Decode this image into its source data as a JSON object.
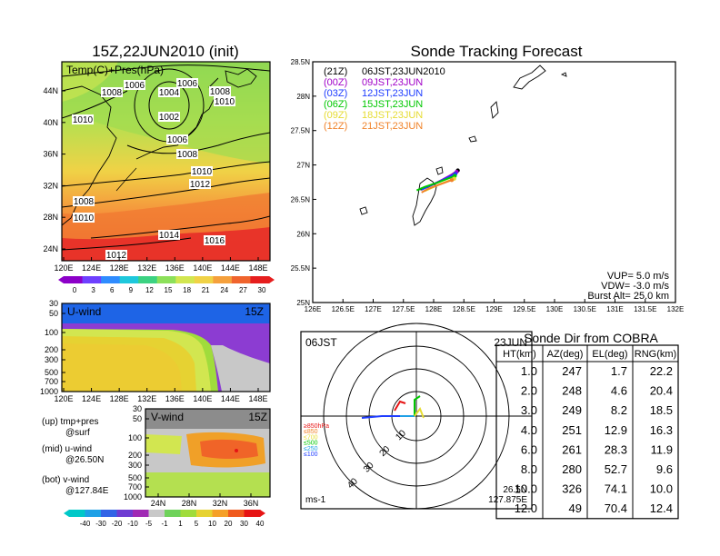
{
  "colors": {
    "frame": "#000000",
    "series_21Z": "#000000",
    "series_00Z": "#a000c8",
    "series_03Z": "#1e3cff",
    "series_06Z": "#00c800",
    "series_09Z": "#e6dc32",
    "series_12Z": "#f08228",
    "temp_scale": [
      "#8c00c8",
      "#6e40ff",
      "#2f8cff",
      "#1ec8dc",
      "#3cd282",
      "#8ce05a",
      "#d2e650",
      "#f0d246",
      "#f5a03c",
      "#f0642d",
      "#e61e1e"
    ],
    "wind_scale": [
      "#00c8c8",
      "#1ea0e6",
      "#3264e6",
      "#6e3cd2",
      "#a02ab4",
      "#c8c8c8",
      "#6ed25a",
      "#a0dc3c",
      "#e6d232",
      "#f5a028",
      "#f05a1e",
      "#e61414"
    ]
  },
  "temp_map": {
    "title": "15Z,22JUN2010 (init)",
    "label": "Temp(C)+Pres(hPa)",
    "x_ticks": [
      "120E",
      "124E",
      "128E",
      "132E",
      "136E",
      "140E",
      "144E",
      "148E"
    ],
    "y_ticks": [
      "44N",
      "40N",
      "36N",
      "32N",
      "28N",
      "24N"
    ],
    "isobar_labels": [
      "1006",
      "1008",
      "1004",
      "1006",
      "1008",
      "1010",
      "1010",
      "1002",
      "1006",
      "1008",
      "1010",
      "1012",
      "1008",
      "1010",
      "1014",
      "1016",
      "1012"
    ],
    "colorbar_ticks": [
      "0",
      "3",
      "6",
      "9",
      "12",
      "15",
      "18",
      "21",
      "24",
      "27",
      "30"
    ]
  },
  "uwind": {
    "label": "U-wind",
    "time": "15Z",
    "y_ticks": [
      "30",
      "50",
      "100",
      "200",
      "300",
      "500",
      "700",
      "1000"
    ],
    "x_ticks": [
      "120E",
      "124E",
      "128E",
      "132E",
      "136E",
      "140E",
      "144E",
      "148E"
    ]
  },
  "vwind": {
    "label": "V-wind",
    "time": "15Z",
    "y_ticks": [
      "30",
      "50",
      "100",
      "200",
      "300",
      "500",
      "700",
      "1000"
    ],
    "x_ticks": [
      "24N",
      "28N",
      "32N",
      "36N"
    ],
    "colorbar_ticks": [
      "-40",
      "-30",
      "-20",
      "-10",
      "-5",
      "-1",
      "1",
      "5",
      "10",
      "20",
      "30",
      "40"
    ]
  },
  "legend_notes": [
    {
      "line1": "(up) tmp+pres",
      "line2": "@surf"
    },
    {
      "line1": "(mid) u-wind",
      "line2": "@26.50N"
    },
    {
      "line1": "(bot) v-wind",
      "line2": "@127.84E"
    }
  ],
  "tracking": {
    "title": "Sonde Tracking Forecast",
    "series": [
      {
        "code": "(21Z)",
        "time": "06JST,23JUN2010",
        "color": "#000000"
      },
      {
        "code": "(00Z)",
        "time": "09JST,23JUN",
        "color": "#a000c8"
      },
      {
        "code": "(03Z)",
        "time": "12JST,23JUN",
        "color": "#1e3cff"
      },
      {
        "code": "(06Z)",
        "time": "15JST,23JUN",
        "color": "#00c800"
      },
      {
        "code": "(09Z)",
        "time": "18JST,23JUN",
        "color": "#e6dc32"
      },
      {
        "code": "(12Z)",
        "time": "21JST,23JUN",
        "color": "#f08228"
      }
    ],
    "x_ticks": [
      "126E",
      "126.5E",
      "127E",
      "127.5E",
      "128E",
      "128.5E",
      "129E",
      "129.5E",
      "130E",
      "130.5E",
      "131E",
      "131.5E",
      "132E"
    ],
    "y_ticks": [
      "28.5N",
      "28N",
      "27.5N",
      "27N",
      "26.5N",
      "26N",
      "25.5N",
      "25N"
    ],
    "params": [
      "VUP= 5.0 m/s",
      "VDW= -3.0 m/s",
      "Burst Alt= 25.0 km"
    ]
  },
  "polar": {
    "time_left": "06JST",
    "time_right": "23JUN",
    "ring_labels": [
      "10",
      "20",
      "30",
      "40"
    ],
    "height_legend": [
      {
        "label": "≥850hPa",
        "color": "#e61414"
      },
      {
        "label": "≤850",
        "color": "#f08228"
      },
      {
        "label": "≤700",
        "color": "#e6dc32"
      },
      {
        "label": "≤500",
        "color": "#00c800"
      },
      {
        "label": "≤250",
        "color": "#1ea0e6"
      },
      {
        "label": "≤100",
        "color": "#1e3cff"
      }
    ],
    "unit": "ms-1",
    "loc_lat": "26.5N",
    "loc_lon": "127.875E"
  },
  "sonde_table": {
    "title": "Sonde Dir from COBRA",
    "headers": [
      "HT(km)",
      "AZ(deg)",
      "EL(deg)",
      "RNG(km)"
    ],
    "rows": [
      [
        "1.0",
        "247",
        "1.7",
        "22.2"
      ],
      [
        "2.0",
        "248",
        "4.6",
        "20.4"
      ],
      [
        "3.0",
        "249",
        "8.2",
        "18.5"
      ],
      [
        "4.0",
        "251",
        "12.9",
        "16.3"
      ],
      [
        "6.0",
        "261",
        "28.3",
        "11.9"
      ],
      [
        "8.0",
        "280",
        "52.7",
        "9.6"
      ],
      [
        "10.0",
        "326",
        "74.1",
        "10.0"
      ],
      [
        "12.0",
        "49",
        "70.4",
        "12.4"
      ]
    ]
  },
  "chart_data": [
    {
      "type": "heatmap",
      "title": "15Z,22JUN2010 (init)",
      "xlim": [
        120,
        150
      ],
      "ylim": [
        22,
        48
      ]
    },
    {
      "type": "heatmap",
      "xlim": [
        120,
        150
      ]
    },
    {
      "type": "heatmap",
      "xlim": [
        22,
        38
      ]
    },
    {
      "type": "line",
      "title": "Sonde Tracking Forecast",
      "xlim": [
        126,
        132
      ],
      "ylim": [
        25,
        28.5
      ],
      "series": [
        {
          "name": "06JST,23JUN2010",
          "x": [
            128.4,
            128.2,
            128.0,
            127.9,
            127.78
          ],
          "y": [
            26.92,
            26.8,
            26.72,
            26.68,
            26.64
          ]
        },
        {
          "name": "09JST,23JUN",
          "x": [
            128.38,
            128.15,
            127.95,
            127.8
          ],
          "y": [
            26.9,
            26.79,
            26.7,
            26.66
          ]
        },
        {
          "name": "12JST,23JUN",
          "x": [
            128.36,
            128.1,
            127.92,
            127.8
          ],
          "y": [
            26.87,
            26.76,
            26.69,
            26.64
          ]
        },
        {
          "name": "15JST,23JUN",
          "x": [
            128.35,
            128.05,
            127.85,
            127.72
          ],
          "y": [
            26.84,
            26.74,
            26.68,
            26.63
          ]
        },
        {
          "name": "18JST,23JUN",
          "x": [
            128.34,
            128.1,
            127.95,
            127.85
          ],
          "y": [
            26.8,
            26.72,
            26.66,
            26.62
          ]
        },
        {
          "name": "21JST,23JUN",
          "x": [
            128.3,
            128.05,
            127.9,
            127.8
          ],
          "y": [
            26.78,
            26.7,
            26.65,
            26.6
          ]
        }
      ]
    },
    {
      "type": "table",
      "title": "Sonde Dir from COBRA",
      "columns": [
        "HT(km)",
        "AZ(deg)",
        "EL(deg)",
        "RNG(km)"
      ],
      "rows": [
        [
          1.0,
          247,
          1.7,
          22.2
        ],
        [
          2.0,
          248,
          4.6,
          20.4
        ],
        [
          3.0,
          249,
          8.2,
          18.5
        ],
        [
          4.0,
          251,
          12.9,
          16.3
        ],
        [
          6.0,
          261,
          28.3,
          11.9
        ],
        [
          8.0,
          280,
          52.7,
          9.6
        ],
        [
          10.0,
          326,
          74.1,
          10.0
        ],
        [
          12.0,
          49,
          70.4,
          12.4
        ]
      ]
    }
  ]
}
